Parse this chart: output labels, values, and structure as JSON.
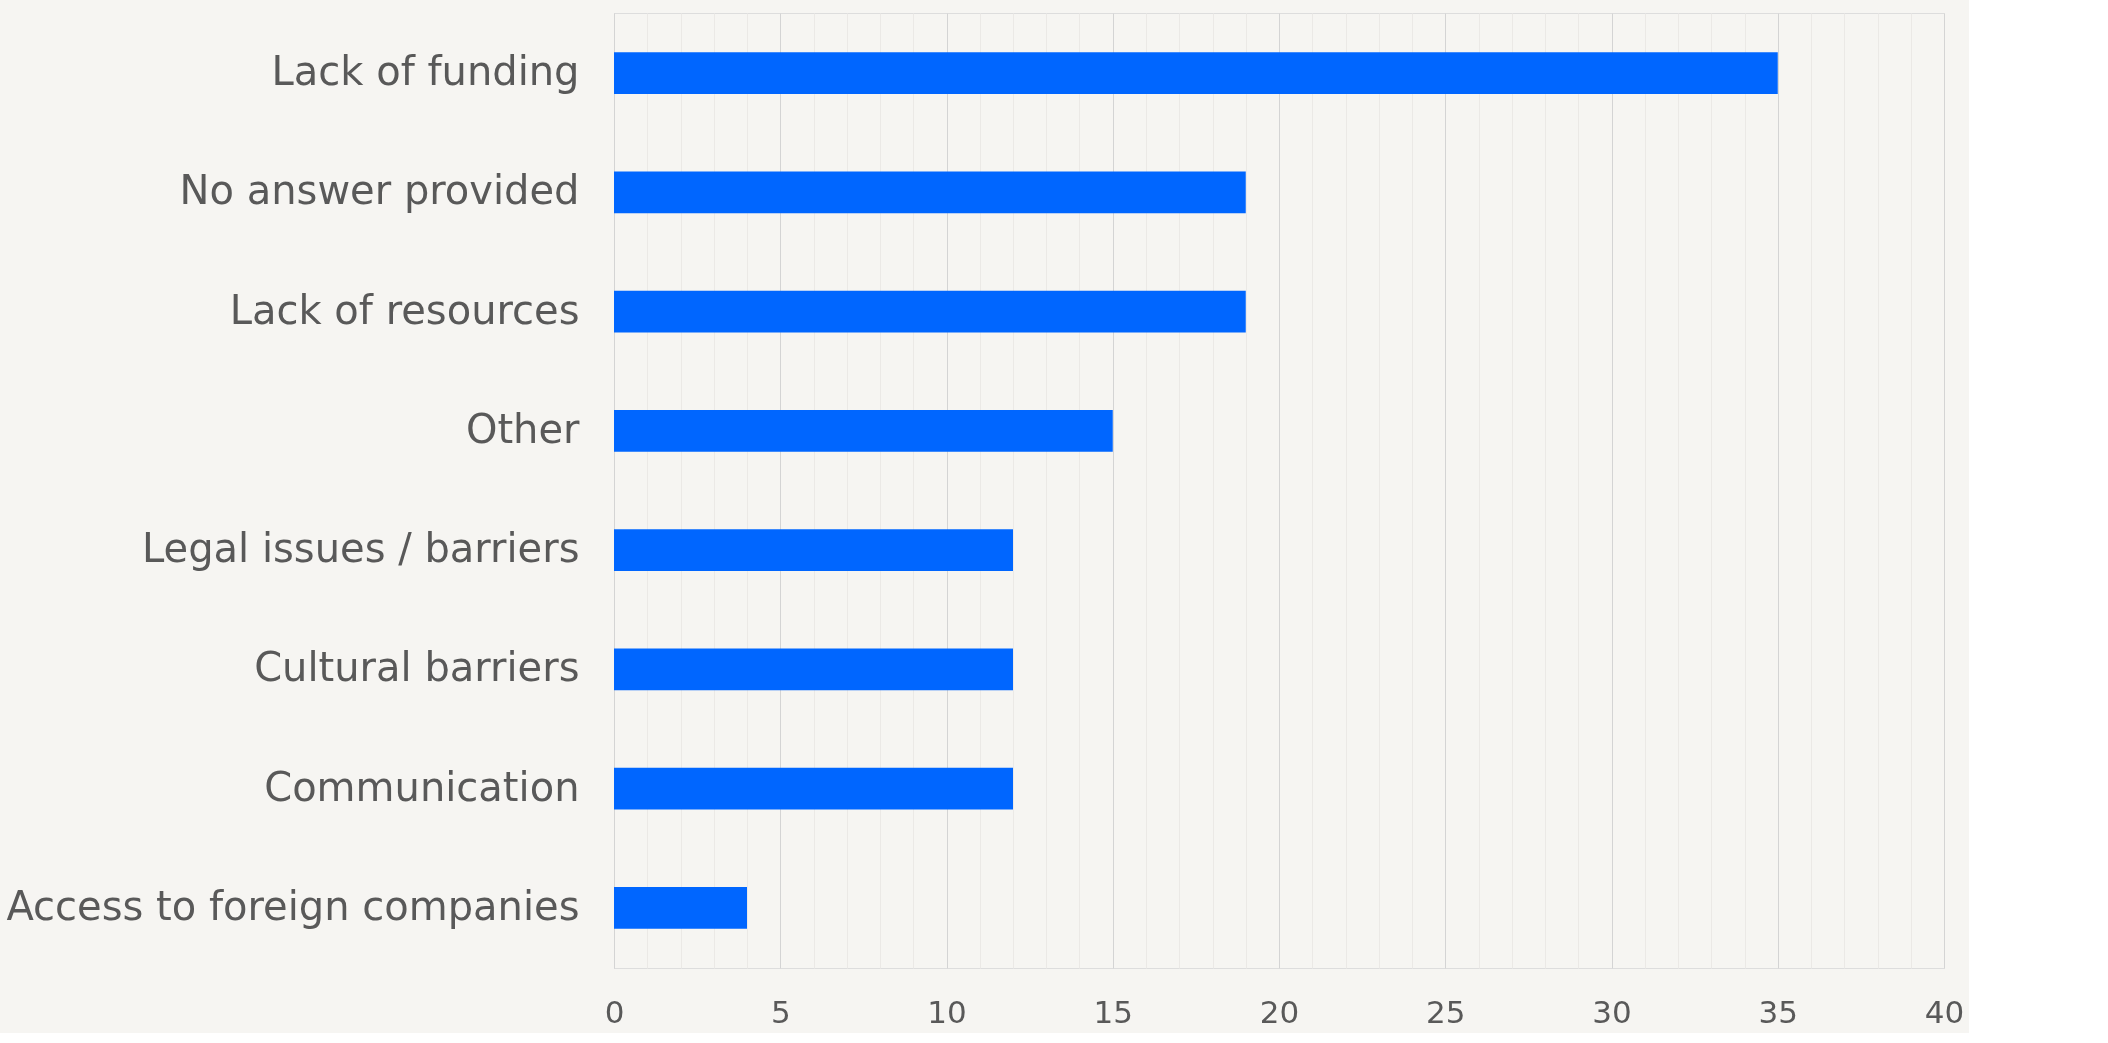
{
  "chart_data": {
    "type": "bar",
    "orientation": "horizontal",
    "categories": [
      "Lack of funding",
      "No answer provided",
      "Lack of resources",
      "Other",
      "Legal issues / barriers",
      "Cultural barriers",
      "Communication",
      "Access to foreign companies"
    ],
    "values": [
      35,
      19,
      19,
      15,
      12,
      12,
      12,
      4
    ],
    "color": "#0066ff",
    "xlim": [
      0,
      40
    ],
    "xticks": [
      0,
      {
        "value": 1,
        "label": null
      },
      {
        "value": 2,
        "label": null
      },
      {
        "value": 3,
        "label": null
      },
      {
        "value": 4,
        "label": null
      },
      5,
      {
        "value": 6,
        "label": null
      },
      {
        "value": 7,
        "label": null
      },
      {
        "value": 8,
        "label": null
      },
      {
        "value": 9,
        "label": null
      },
      10,
      {
        "value": 11,
        "label": null
      },
      {
        "value": 12,
        "label": null
      },
      {
        "value": 13,
        "label": null
      },
      {
        "value": 14,
        "label": null
      },
      15,
      {
        "value": 16,
        "label": null
      },
      {
        "value": 17,
        "label": null
      },
      {
        "value": 18,
        "label": null
      },
      {
        "value": 19,
        "label": null
      },
      20,
      {
        "value": 21,
        "label": null
      },
      {
        "value": 22,
        "label": null
      },
      {
        "value": 23,
        "label": null
      },
      {
        "value": 24,
        "label": null
      },
      25,
      {
        "value": 26,
        "label": null
      },
      {
        "value": 27,
        "label": null
      },
      {
        "value": 28,
        "label": null
      },
      {
        "value": 29,
        "label": null
      },
      30,
      {
        "value": 31,
        "label": null
      },
      {
        "value": 32,
        "label": null
      },
      {
        "value": 33,
        "label": null
      },
      {
        "value": 34,
        "label": null
      },
      35,
      {
        "value": 36,
        "label": null
      },
      {
        "value": 37,
        "label": null
      },
      {
        "value": 38,
        "label": null
      },
      {
        "value": 39,
        "label": null
      },
      40
    ],
    "grid": true
  }
}
